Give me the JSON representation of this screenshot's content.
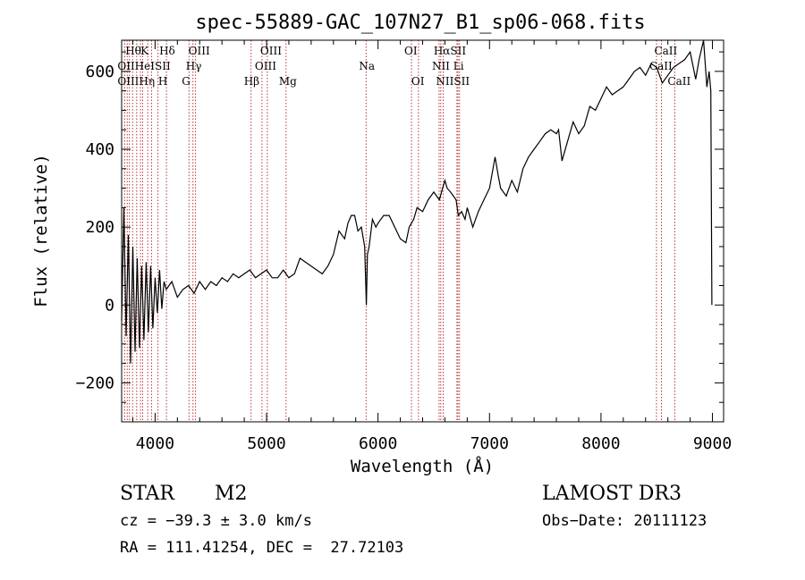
{
  "chart_data": {
    "type": "line",
    "title": "spec-55889-GAC_107N27_B1_sp06-068.fits",
    "xlabel": "Wavelength (Å)",
    "ylabel": "Flux (relative)",
    "xlim": [
      3700,
      9100
    ],
    "ylim": [
      -300,
      680
    ],
    "xticks": [
      4000,
      5000,
      6000,
      7000,
      8000,
      9000
    ],
    "yticks": [
      -200,
      0,
      200,
      400,
      600
    ],
    "xtick_labels": [
      "4000",
      "5000",
      "6000",
      "7000",
      "8000",
      "9000"
    ],
    "ytick_labels": [
      "−200",
      "0",
      "200",
      "400",
      "600"
    ],
    "series": [
      {
        "name": "flux",
        "x": [
          3700,
          3720,
          3740,
          3760,
          3780,
          3800,
          3820,
          3840,
          3860,
          3880,
          3900,
          3920,
          3940,
          3960,
          3980,
          4000,
          4020,
          4040,
          4060,
          4080,
          4100,
          4150,
          4200,
          4250,
          4300,
          4350,
          4400,
          4450,
          4500,
          4550,
          4600,
          4650,
          4700,
          4750,
          4800,
          4850,
          4900,
          4950,
          5000,
          5050,
          5100,
          5150,
          5200,
          5250,
          5300,
          5350,
          5400,
          5450,
          5500,
          5550,
          5600,
          5650,
          5700,
          5730,
          5760,
          5790,
          5820,
          5850,
          5880,
          5895,
          5905,
          5920,
          5950,
          5980,
          6000,
          6050,
          6100,
          6150,
          6200,
          6250,
          6280,
          6300,
          6320,
          6350,
          6400,
          6450,
          6500,
          6550,
          6580,
          6600,
          6620,
          6650,
          6700,
          6720,
          6750,
          6780,
          6800,
          6850,
          6900,
          6950,
          7000,
          7050,
          7080,
          7100,
          7150,
          7200,
          7250,
          7300,
          7350,
          7400,
          7450,
          7500,
          7550,
          7600,
          7620,
          7650,
          7700,
          7750,
          7800,
          7850,
          7900,
          7950,
          8000,
          8050,
          8100,
          8150,
          8200,
          8250,
          8300,
          8350,
          8400,
          8450,
          8500,
          8550,
          8600,
          8650,
          8700,
          8750,
          8800,
          8850,
          8880,
          8920,
          8950,
          8970,
          8985,
          8995
        ],
        "y": [
          -40,
          250,
          -80,
          180,
          -150,
          150,
          -120,
          120,
          -110,
          100,
          -90,
          110,
          -70,
          100,
          -60,
          70,
          -20,
          90,
          -10,
          60,
          40,
          60,
          20,
          40,
          50,
          30,
          60,
          40,
          60,
          50,
          70,
          60,
          80,
          70,
          80,
          90,
          70,
          80,
          90,
          70,
          70,
          90,
          70,
          80,
          120,
          110,
          100,
          90,
          80,
          100,
          130,
          190,
          170,
          210,
          230,
          230,
          190,
          200,
          150,
          0,
          130,
          150,
          220,
          200,
          210,
          230,
          230,
          200,
          170,
          160,
          200,
          210,
          220,
          250,
          240,
          270,
          290,
          270,
          300,
          320,
          300,
          290,
          270,
          230,
          240,
          220,
          250,
          200,
          240,
          270,
          300,
          380,
          330,
          300,
          280,
          320,
          290,
          350,
          380,
          400,
          420,
          440,
          450,
          440,
          450,
          370,
          420,
          470,
          440,
          460,
          510,
          500,
          530,
          560,
          540,
          550,
          560,
          580,
          600,
          610,
          590,
          620,
          610,
          570,
          590,
          610,
          620,
          630,
          650,
          580,
          630,
          690,
          560,
          600,
          550,
          0
        ]
      }
    ],
    "line_ids": [
      {
        "label": "Hθ",
        "wave": 3798,
        "row": 0
      },
      {
        "label": "K",
        "wave": 3934,
        "row": 0
      },
      {
        "label": "Hδ",
        "wave": 4102,
        "row": 0
      },
      {
        "label": "OIII",
        "wave": 4363,
        "row": 0
      },
      {
        "label": "OIII",
        "wave": 5007,
        "row": 0
      },
      {
        "label": "OI",
        "wave": 6300,
        "row": 0
      },
      {
        "label": "HαSII",
        "wave": 6563,
        "row": 0
      },
      {
        "label": "CaII",
        "wave": 8542,
        "row": 0
      },
      {
        "label": "OIIHeISII",
        "wave": 3727,
        "row": 1
      },
      {
        "label": "Hγ",
        "wave": 4340,
        "row": 1
      },
      {
        "label": "OIII",
        "wave": 4959,
        "row": 1
      },
      {
        "label": "Na",
        "wave": 5893,
        "row": 1
      },
      {
        "label": "NII Li",
        "wave": 6548,
        "row": 1
      },
      {
        "label": "CaII",
        "wave": 8498,
        "row": 1
      },
      {
        "label": "OIIIHη H",
        "wave": 3727,
        "row": 2
      },
      {
        "label": "G",
        "wave": 4304,
        "row": 2
      },
      {
        "label": "Hβ",
        "wave": 4861,
        "row": 2
      },
      {
        "label": "Mg",
        "wave": 5175,
        "row": 2
      },
      {
        "label": "OI",
        "wave": 6363,
        "row": 2
      },
      {
        "label": "NIISII",
        "wave": 6584,
        "row": 2
      },
      {
        "label": "CaII",
        "wave": 8662,
        "row": 2
      }
    ],
    "marker_waves": [
      3727,
      3750,
      3770,
      3798,
      3835,
      3869,
      3889,
      3934,
      3968,
      4026,
      4102,
      4304,
      4340,
      4363,
      4861,
      4959,
      5007,
      5175,
      5893,
      6300,
      6363,
      6548,
      6563,
      6584,
      6708,
      6717,
      6731,
      8498,
      8542,
      8662
    ]
  },
  "info": {
    "object_class": "STAR",
    "subclass": "M2",
    "survey": "LAMOST DR3",
    "cz": "cz = −39.3 ± 3.0 km/s",
    "obs_date": "Obs−Date: 20111123",
    "coords": "RA = 111.41254, DEC =  27.72103"
  }
}
